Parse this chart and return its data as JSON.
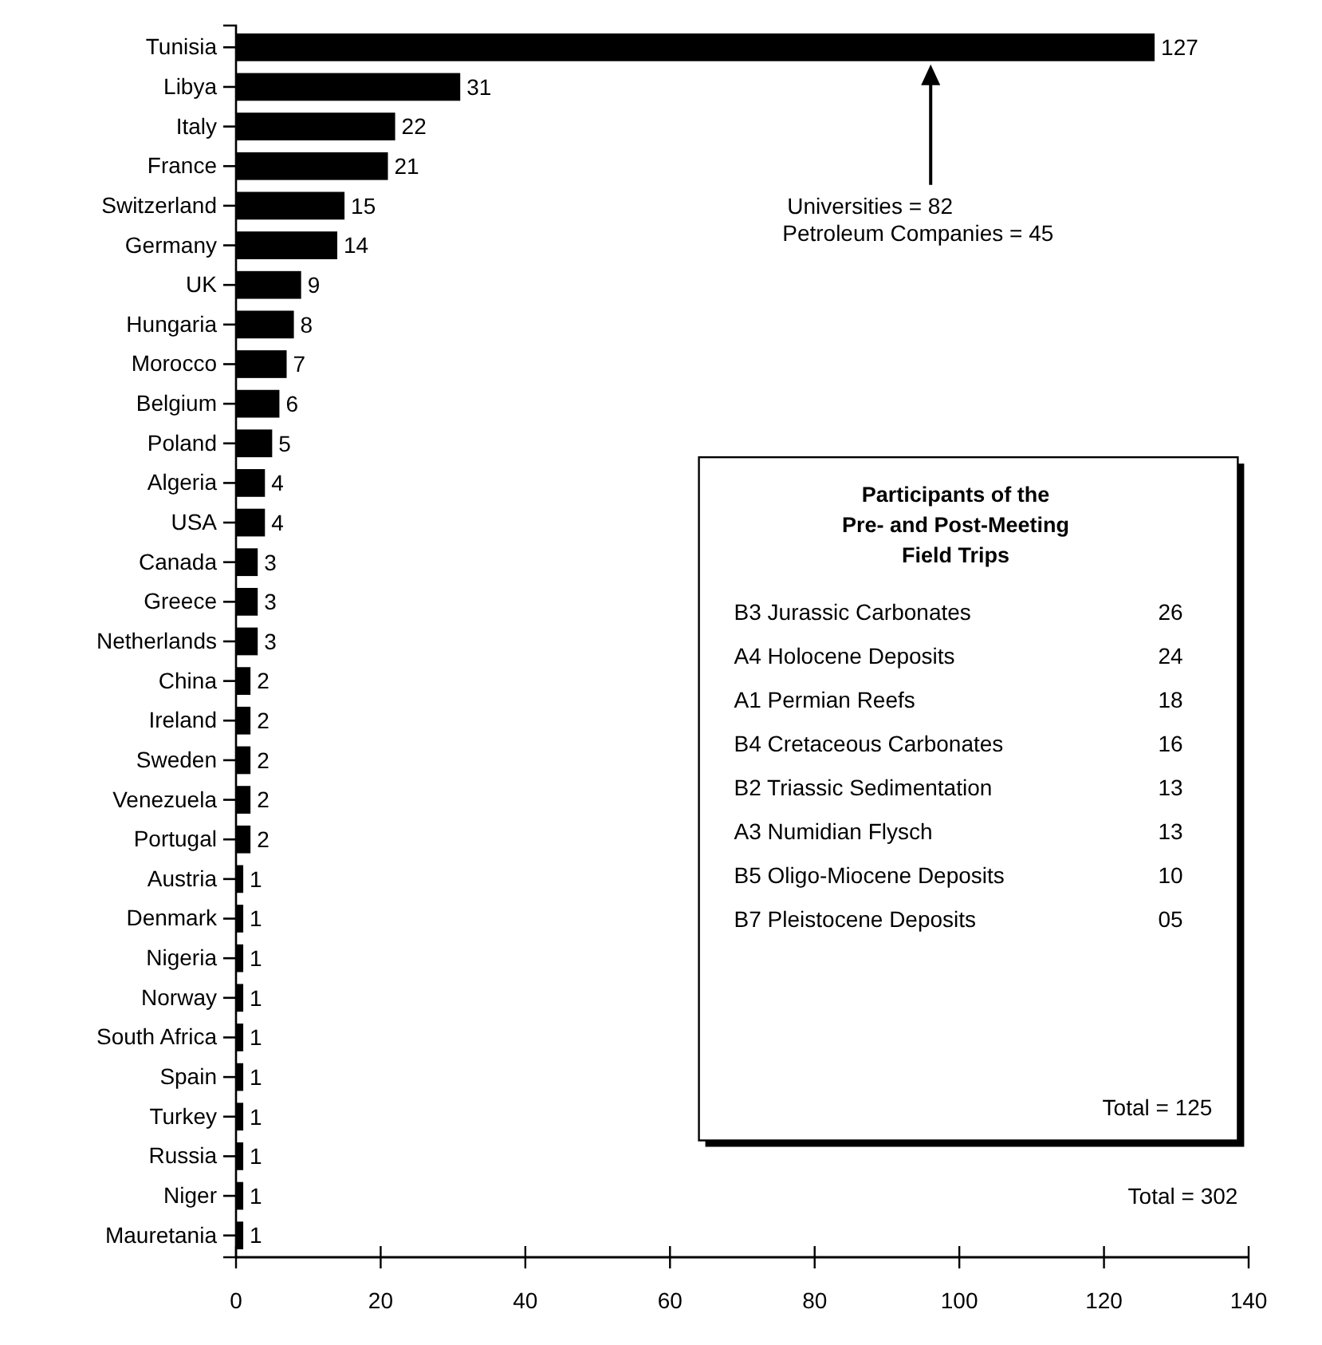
{
  "chart_data": {
    "type": "bar",
    "orientation": "horizontal",
    "categories": [
      "Tunisia",
      "Libya",
      "Italy",
      "France",
      "Switzerland",
      "Germany",
      "UK",
      "Hungaria",
      "Morocco",
      "Belgium",
      "Poland",
      "Algeria",
      "USA",
      "Canada",
      "Greece",
      "Netherlands",
      "China",
      "Ireland",
      "Sweden",
      "Venezuela",
      "Portugal",
      "Austria",
      "Denmark",
      "Nigeria",
      "Norway",
      "South Africa",
      "Spain",
      "Turkey",
      "Russia",
      "Niger",
      "Mauretania"
    ],
    "values": [
      127,
      31,
      22,
      21,
      15,
      14,
      9,
      8,
      7,
      6,
      5,
      4,
      4,
      3,
      3,
      3,
      2,
      2,
      2,
      2,
      2,
      1,
      1,
      1,
      1,
      1,
      1,
      1,
      1,
      1,
      1
    ],
    "color": "#000000",
    "data_labels": true,
    "grid": false,
    "xlim": [
      0,
      140
    ],
    "xticks": [
      0,
      20,
      40,
      60,
      80,
      100,
      120,
      140
    ],
    "annotations": [
      "Universities = 82\nPetroleum Companies = 45",
      "Participants of the",
      "Pre- and Post-Meeting",
      "Field Trips",
      "B3 Jurassic Carbonates",
      "26",
      "A4 Holocene Deposits",
      "24",
      "A1 Permian Reefs",
      "18",
      "B4 Cretaceous Carbonates",
      "16",
      "B2 Triassic Sedimentation",
      "13",
      "A3 Numidian Flysch",
      "13",
      "B5 Oligo-Miocene Deposits",
      "10",
      "B7 Pleistocene Deposits",
      "05",
      "Total = 125",
      "Total = 302"
    ]
  }
}
